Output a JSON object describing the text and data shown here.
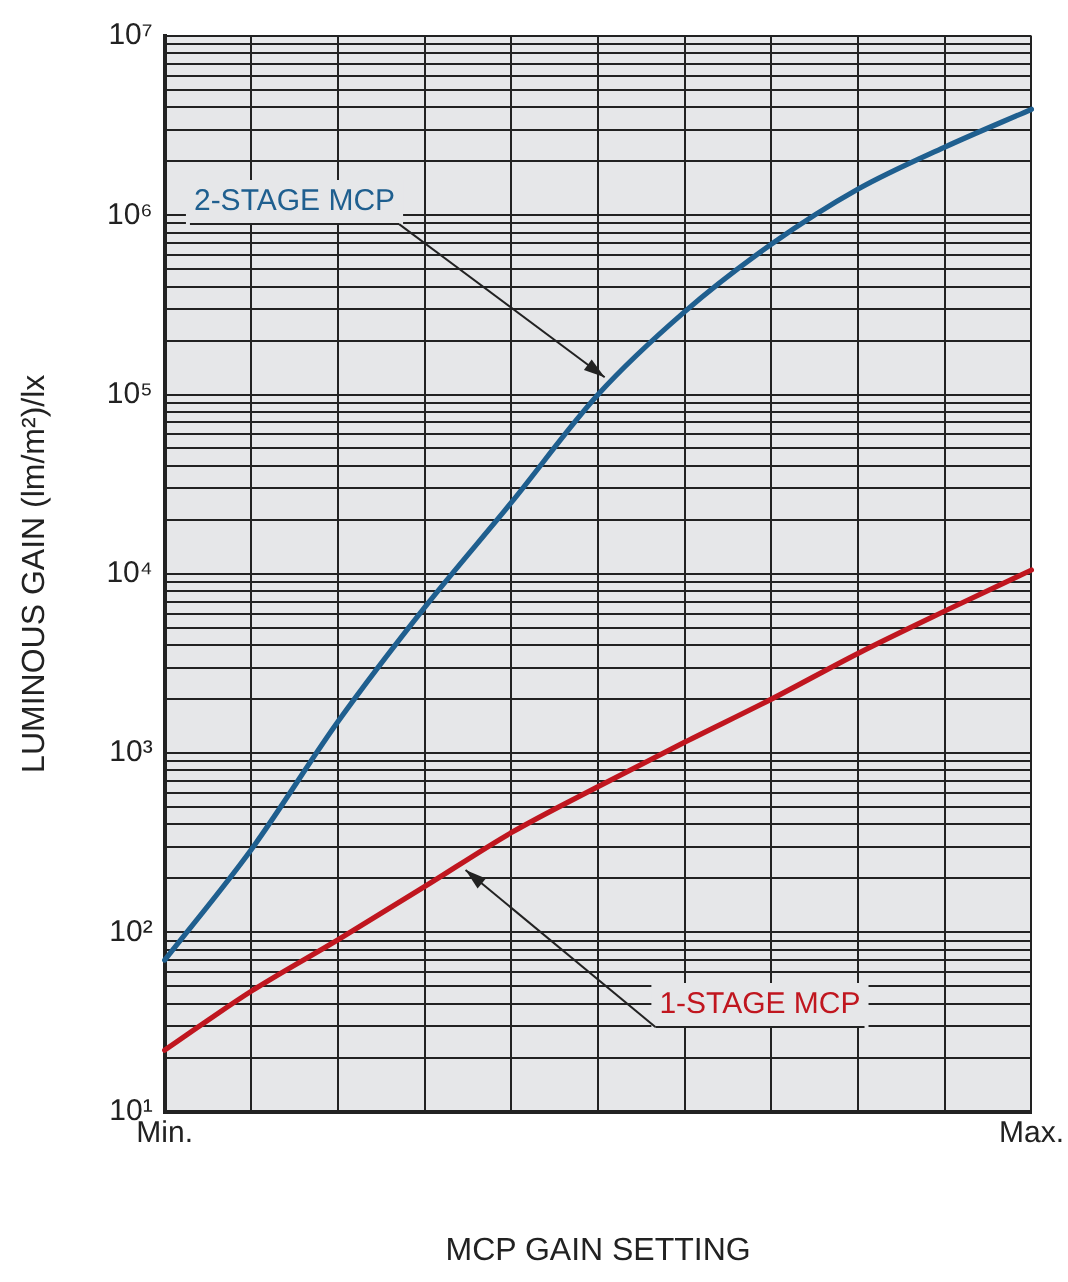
{
  "chart_data": {
    "type": "line",
    "xlabel": "MCP GAIN SETTING",
    "ylabel": "LUMINOUS GAIN (lm/m²)/lx",
    "categories": [
      "Min.",
      null,
      null,
      null,
      null,
      null,
      null,
      null,
      null,
      null,
      "Max."
    ],
    "series": [
      {
        "name": "2-STAGE MCP",
        "color": "#1f5f8f",
        "values": [
          70,
          290,
          1500,
          6500,
          25000,
          100000,
          290000,
          690000,
          1400000,
          2400000,
          3900000
        ]
      },
      {
        "name": "1-STAGE MCP",
        "color": "#c0161f",
        "values": [
          22,
          47,
          91,
          180,
          360,
          650,
          1150,
          2000,
          3600,
          6200,
          10500
        ]
      }
    ],
    "log": "y",
    "grid": true,
    "legend": false,
    "marker": "none",
    "line_style": "solid",
    "ylim": [
      10,
      10000000
    ],
    "yticks": [
      {
        "value": 10,
        "label": "10¹"
      },
      {
        "value": 20,
        "label": null
      },
      {
        "value": 30,
        "label": null
      },
      {
        "value": 40,
        "label": null
      },
      {
        "value": 50,
        "label": null
      },
      {
        "value": 60,
        "label": null
      },
      {
        "value": 70,
        "label": null
      },
      {
        "value": 80,
        "label": null
      },
      {
        "value": 90,
        "label": null
      },
      {
        "value": 100,
        "label": "10²"
      },
      {
        "value": 200,
        "label": null
      },
      {
        "value": 300,
        "label": null
      },
      {
        "value": 400,
        "label": null
      },
      {
        "value": 500,
        "label": null
      },
      {
        "value": 600,
        "label": null
      },
      {
        "value": 700,
        "label": null
      },
      {
        "value": 800,
        "label": null
      },
      {
        "value": 900,
        "label": null
      },
      {
        "value": 1000,
        "label": "10³"
      },
      {
        "value": 2000,
        "label": null
      },
      {
        "value": 3000,
        "label": null
      },
      {
        "value": 4000,
        "label": null
      },
      {
        "value": 5000,
        "label": null
      },
      {
        "value": 6000,
        "label": null
      },
      {
        "value": 7000,
        "label": null
      },
      {
        "value": 8000,
        "label": null
      },
      {
        "value": 9000,
        "label": null
      },
      {
        "value": 10000,
        "label": "10⁴"
      },
      {
        "value": 20000,
        "label": null
      },
      {
        "value": 30000,
        "label": null
      },
      {
        "value": 40000,
        "label": null
      },
      {
        "value": 50000,
        "label": null
      },
      {
        "value": 60000,
        "label": null
      },
      {
        "value": 70000,
        "label": null
      },
      {
        "value": 80000,
        "label": null
      },
      {
        "value": 90000,
        "label": null
      },
      {
        "value": 100000,
        "label": "10⁵"
      },
      {
        "value": 200000,
        "label": null
      },
      {
        "value": 300000,
        "label": null
      },
      {
        "value": 400000,
        "label": null
      },
      {
        "value": 500000,
        "label": null
      },
      {
        "value": 600000,
        "label": null
      },
      {
        "value": 700000,
        "label": null
      },
      {
        "value": 800000,
        "label": null
      },
      {
        "value": 900000,
        "label": null
      },
      {
        "value": 1000000,
        "label": "10⁶"
      },
      {
        "value": 2000000,
        "label": null
      },
      {
        "value": 3000000,
        "label": null
      },
      {
        "value": 4000000,
        "label": null
      },
      {
        "value": 5000000,
        "label": null
      },
      {
        "value": 6000000,
        "label": null
      },
      {
        "value": 7000000,
        "label": null
      },
      {
        "value": 8000000,
        "label": null
      },
      {
        "value": 9000000,
        "label": null
      },
      {
        "value": 10000000,
        "label": "10⁷"
      }
    ]
  }
}
